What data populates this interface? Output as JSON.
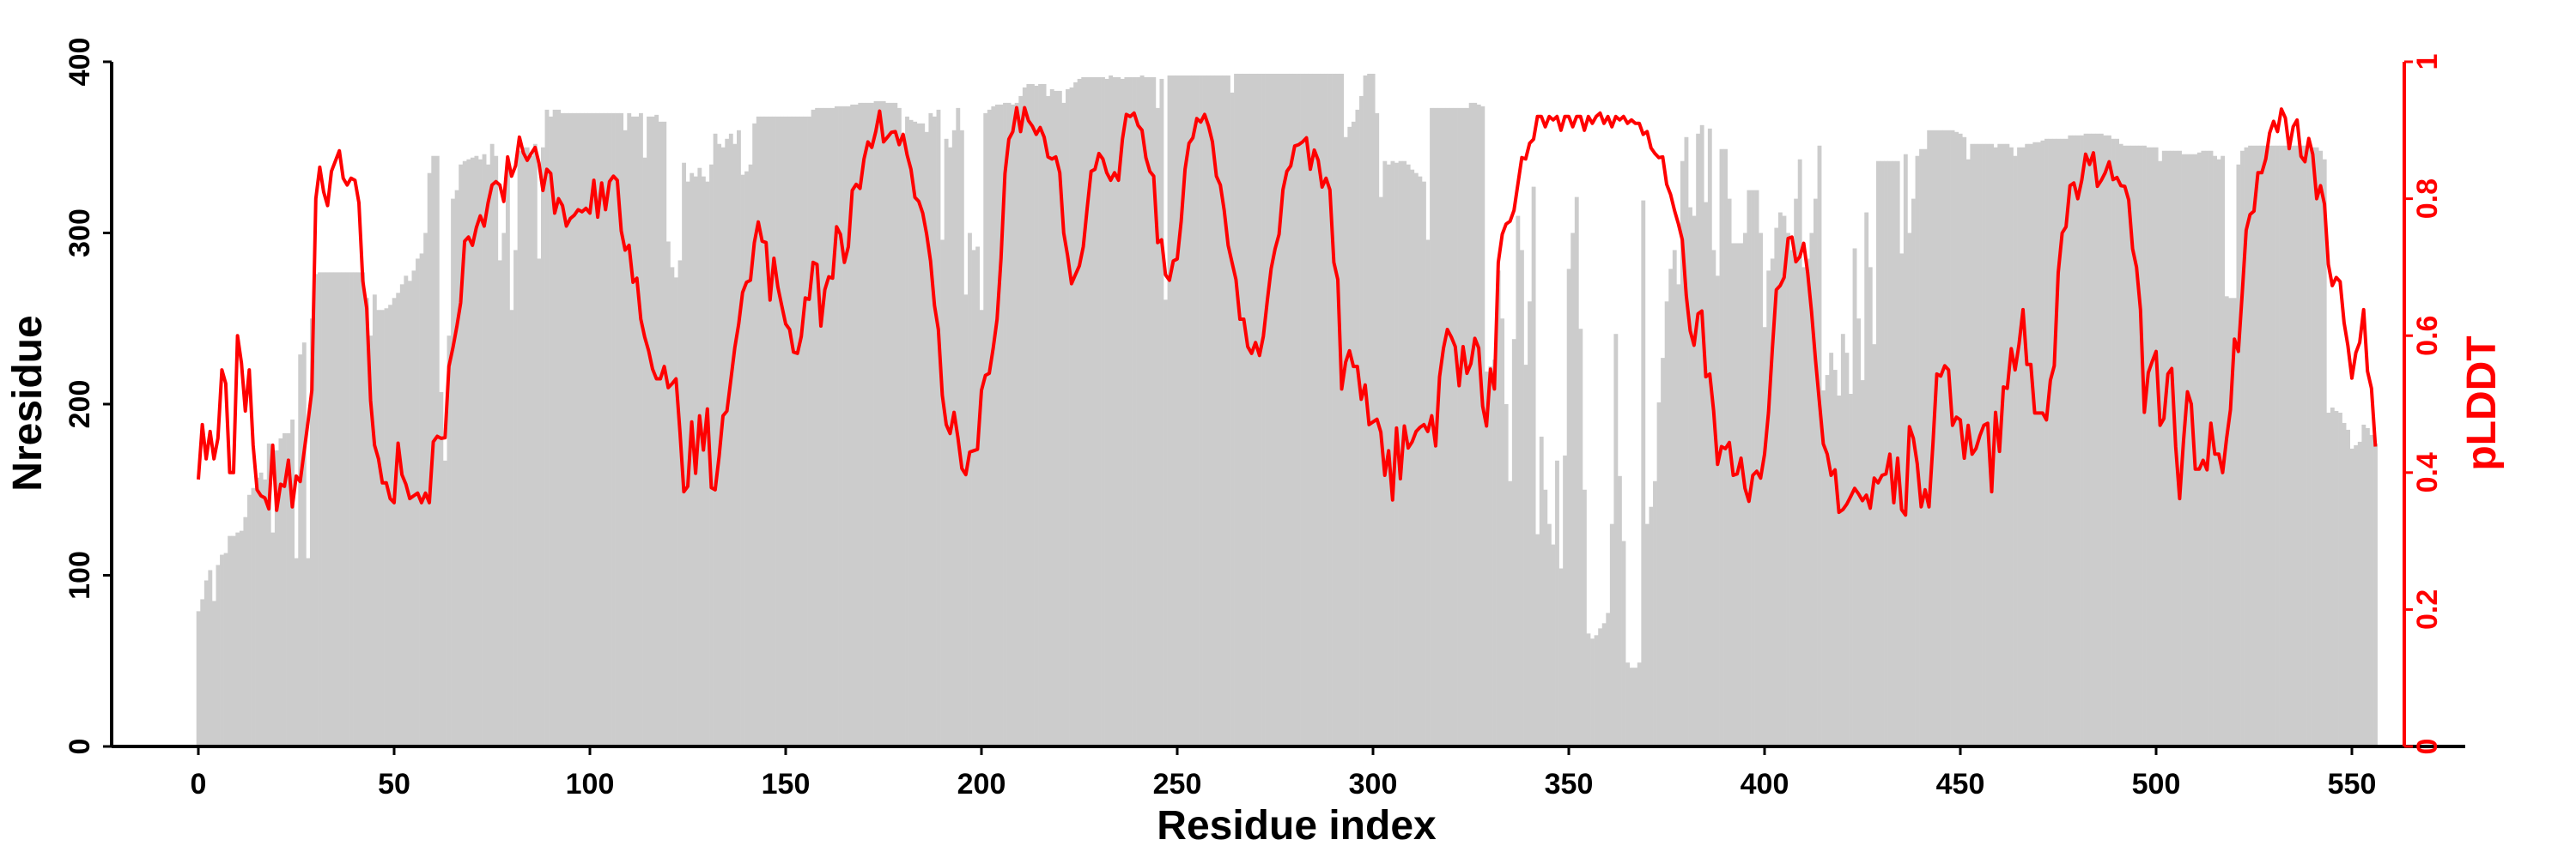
{
  "chart_data": {
    "type": "bar+line",
    "xlabel": "Residue index",
    "ylabel_left": "Nresidue",
    "ylabel_right": "pLDDT",
    "xlim": [
      0,
      556
    ],
    "ylim_left": [
      0,
      400
    ],
    "ylim_right": [
      0,
      1
    ],
    "x_ticks": [
      "0",
      "50",
      "100",
      "150",
      "200",
      "250",
      "300",
      "350",
      "400",
      "450",
      "500",
      "550"
    ],
    "y_ticks_left": [
      "0",
      "100",
      "200",
      "300",
      "400"
    ],
    "y_ticks_right": [
      "0",
      "0.2",
      "0.4",
      "0.6",
      "0.8",
      "1"
    ],
    "grid": false,
    "colors": {
      "bars": "#cccccc",
      "line": "#ff0000",
      "axis": "#000000",
      "right_axis": "#ff0000"
    },
    "series": [
      {
        "name": "Nresidue",
        "type": "bar",
        "axis": "left",
        "x_start": 0,
        "values": [
          79,
          86,
          97,
          103,
          85,
          106,
          112,
          113,
          123,
          123,
          125,
          126,
          134,
          147,
          151,
          157,
          160,
          156,
          177,
          125,
          173,
          180,
          183,
          183,
          191,
          110,
          229,
          236,
          110,
          250,
          276,
          277,
          277,
          277,
          277,
          277,
          277,
          277,
          277,
          277,
          277,
          277,
          277,
          262,
          240,
          264,
          255,
          255,
          256,
          258,
          262,
          265,
          270,
          275,
          272,
          278,
          285,
          288,
          300,
          335,
          345,
          345,
          207,
          167,
          240,
          320,
          325,
          340,
          342,
          343,
          344,
          345,
          343,
          346,
          340,
          352,
          345,
          284,
          300,
          340,
          255,
          290,
          348,
          350,
          350,
          345,
          352,
          285,
          350,
          372,
          368,
          372,
          372,
          370,
          370,
          370,
          370,
          370,
          370,
          370,
          370,
          370,
          370,
          370,
          370,
          370,
          370,
          370,
          370,
          360,
          370,
          368,
          368,
          370,
          344,
          368,
          368,
          369,
          365,
          365,
          295,
          280,
          274,
          284,
          341,
          330,
          335,
          333,
          338,
          333,
          330,
          340,
          358,
          352,
          350,
          355,
          358,
          352,
          360,
          334,
          336,
          340,
          364,
          368,
          368,
          368,
          368,
          368,
          368,
          368,
          368,
          368,
          368,
          368,
          368,
          368,
          368,
          372,
          373,
          373,
          373,
          373,
          373,
          374,
          374,
          374,
          374,
          375,
          375,
          376,
          376,
          376,
          376,
          377,
          377,
          377,
          376,
          376,
          376,
          373,
          355,
          368,
          366,
          365,
          364,
          364,
          359,
          370,
          368,
          372,
          296,
          355,
          350,
          360,
          373,
          360,
          264,
          300,
          290,
          292,
          255,
          370,
          372,
          374,
          375,
          375,
          376,
          376,
          375,
          376,
          380,
          385,
          387,
          387,
          386,
          387,
          387,
          380,
          384,
          383,
          383,
          376,
          384,
          385,
          388,
          390,
          391,
          391,
          391,
          391,
          391,
          391,
          390,
          392,
          391,
          391,
          390,
          391,
          391,
          391,
          391,
          392,
          391,
          391,
          391,
          373,
          390,
          261,
          392,
          392,
          392,
          392,
          392,
          392,
          392,
          392,
          392,
          392,
          392,
          392,
          392,
          392,
          392,
          392,
          382,
          393,
          393,
          393,
          393,
          393,
          393,
          393,
          393,
          393,
          393,
          393,
          393,
          393,
          393,
          393,
          393,
          393,
          393,
          393,
          393,
          393,
          393,
          393,
          393,
          393,
          393,
          393,
          393,
          356,
          362,
          365,
          372,
          380,
          392,
          393,
          393,
          370,
          321,
          342,
          340,
          342,
          341,
          342,
          342,
          340,
          337,
          335,
          333,
          330,
          296,
          373,
          373,
          373,
          373,
          373,
          373,
          373,
          373,
          373,
          373,
          376,
          376,
          375,
          374,
          219,
          222,
          226,
          278,
          250,
          200,
          155,
          238,
          310,
          290,
          223,
          260,
          327,
          124,
          181,
          150,
          130,
          118,
          167,
          104,
          170,
          279,
          300,
          321,
          244,
          150,
          66,
          63,
          65,
          69,
          72,
          78,
          130,
          241,
          158,
          120,
          49,
          46,
          46,
          49,
          319,
          130,
          140,
          155,
          201,
          227,
          260,
          279,
          290,
          270,
          342,
          356,
          315,
          310,
          358,
          363,
          318,
          361,
          290,
          275,
          349,
          349,
          320,
          294,
          294,
          294,
          300,
          325,
          325,
          325,
          300,
          245,
          278,
          285,
          303,
          312,
          310,
          300,
          290,
          320,
          343,
          280,
          285,
          300,
          320,
          351,
          208,
          217,
          230,
          220,
          205,
          241,
          230,
          206,
          291,
          250,
          214,
          312,
          280,
          235,
          342,
          342,
          342,
          342,
          342,
          342,
          288,
          346,
          300,
          320,
          345,
          349,
          349,
          360,
          360,
          360,
          360,
          360,
          360,
          360,
          359,
          358,
          356,
          343,
          352,
          352,
          352,
          352,
          352,
          352,
          350,
          352,
          352,
          352,
          350,
          345,
          350,
          350,
          352,
          352,
          353,
          353,
          354,
          355,
          355,
          355,
          355,
          355,
          355,
          357,
          357,
          357,
          357,
          358,
          358,
          358,
          358,
          358,
          357,
          357,
          355,
          355,
          352,
          351,
          351,
          351,
          351,
          351,
          351,
          350,
          350,
          350,
          342,
          348,
          348,
          348,
          348,
          348,
          346,
          346,
          346,
          346,
          347,
          348,
          348,
          348,
          345,
          343,
          345,
          263,
          262,
          262,
          340,
          348,
          350,
          351,
          351,
          351,
          351,
          351,
          351,
          351,
          351,
          351,
          351,
          351,
          351,
          351,
          351,
          351,
          351,
          350,
          350,
          348,
          343,
          195,
          198,
          196,
          195,
          189,
          185,
          174,
          176,
          178,
          188,
          186,
          182,
          177
        ]
      },
      {
        "name": "pLDDT",
        "type": "line",
        "axis": "right",
        "x_start": 0,
        "values": [
          0.39,
          0.47,
          0.42,
          0.46,
          0.42,
          0.45,
          0.55,
          0.53,
          0.4,
          0.4,
          0.6,
          0.56,
          0.49,
          0.55,
          0.44,
          0.375,
          0.366,
          0.363,
          0.347,
          0.44,
          0.345,
          0.383,
          0.38,
          0.418,
          0.35,
          0.395,
          0.387,
          0.43,
          0.474,
          0.52,
          0.8,
          0.846,
          0.81,
          0.79,
          0.84,
          0.855,
          0.87,
          0.83,
          0.82,
          0.83,
          0.827,
          0.794,
          0.68,
          0.64,
          0.505,
          0.44,
          0.42,
          0.385,
          0.385,
          0.362,
          0.356,
          0.443,
          0.397,
          0.383,
          0.362,
          0.366,
          0.37,
          0.356,
          0.37,
          0.356,
          0.445,
          0.453,
          0.45,
          0.451,
          0.555,
          0.582,
          0.613,
          0.648,
          0.738,
          0.744,
          0.732,
          0.758,
          0.775,
          0.76,
          0.794,
          0.82,
          0.825,
          0.82,
          0.796,
          0.861,
          0.833,
          0.848,
          0.89,
          0.867,
          0.856,
          0.866,
          0.875,
          0.852,
          0.812,
          0.843,
          0.837,
          0.779,
          0.8,
          0.79,
          0.76,
          0.771,
          0.776,
          0.784,
          0.781,
          0.786,
          0.779,
          0.827,
          0.773,
          0.823,
          0.784,
          0.825,
          0.833,
          0.827,
          0.753,
          0.725,
          0.732,
          0.678,
          0.684,
          0.624,
          0.598,
          0.578,
          0.551,
          0.537,
          0.537,
          0.555,
          0.524,
          0.53,
          0.537,
          0.459,
          0.372,
          0.38,
          0.474,
          0.399,
          0.483,
          0.433,
          0.493,
          0.378,
          0.375,
          0.424,
          0.483,
          0.49,
          0.536,
          0.582,
          0.617,
          0.663,
          0.678,
          0.681,
          0.736,
          0.766,
          0.738,
          0.736,
          0.652,
          0.713,
          0.671,
          0.644,
          0.617,
          0.609,
          0.576,
          0.574,
          0.599,
          0.655,
          0.653,
          0.707,
          0.704,
          0.614,
          0.667,
          0.686,
          0.684,
          0.759,
          0.748,
          0.707,
          0.73,
          0.812,
          0.821,
          0.815,
          0.858,
          0.883,
          0.875,
          0.898,
          0.928,
          0.883,
          0.89,
          0.897,
          0.898,
          0.879,
          0.894,
          0.864,
          0.843,
          0.802,
          0.796,
          0.779,
          0.748,
          0.709,
          0.644,
          0.609,
          0.513,
          0.47,
          0.457,
          0.488,
          0.451,
          0.406,
          0.397,
          0.43,
          0.432,
          0.434,
          0.52,
          0.542,
          0.545,
          0.582,
          0.624,
          0.713,
          0.837,
          0.887,
          0.898,
          0.933,
          0.898,
          0.933,
          0.914,
          0.906,
          0.894,
          0.904,
          0.89,
          0.861,
          0.858,
          0.861,
          0.838,
          0.75,
          0.717,
          0.676,
          0.689,
          0.702,
          0.73,
          0.786,
          0.84,
          0.843,
          0.866,
          0.858,
          0.838,
          0.827,
          0.838,
          0.827,
          0.887,
          0.923,
          0.92,
          0.925,
          0.907,
          0.9,
          0.86,
          0.84,
          0.833,
          0.736,
          0.74,
          0.689,
          0.681,
          0.709,
          0.712,
          0.767,
          0.843,
          0.881,
          0.889,
          0.917,
          0.912,
          0.923,
          0.906,
          0.883,
          0.833,
          0.82,
          0.783,
          0.732,
          0.707,
          0.682,
          0.624,
          0.624,
          0.584,
          0.574,
          0.59,
          0.571,
          0.599,
          0.651,
          0.698,
          0.727,
          0.748,
          0.813,
          0.84,
          0.848,
          0.877,
          0.879,
          0.883,
          0.889,
          0.843,
          0.871,
          0.856,
          0.817,
          0.83,
          0.813,
          0.707,
          0.682,
          0.522,
          0.561,
          0.578,
          0.555,
          0.555,
          0.507,
          0.528,
          0.47,
          0.474,
          0.478,
          0.459,
          0.396,
          0.432,
          0.36,
          0.465,
          0.391,
          0.468,
          0.436,
          0.445,
          0.46,
          0.466,
          0.47,
          0.46,
          0.483,
          0.439,
          0.54,
          0.582,
          0.609,
          0.598,
          0.584,
          0.527,
          0.584,
          0.545,
          0.559,
          0.596,
          0.582,
          0.497,
          0.468,
          0.551,
          0.522,
          0.707,
          0.748,
          0.763,
          0.767,
          0.783,
          0.821,
          0.86,
          0.858,
          0.881,
          0.887,
          0.92,
          0.92,
          0.905,
          0.92,
          0.915,
          0.92,
          0.9,
          0.92,
          0.92,
          0.905,
          0.92,
          0.92,
          0.9,
          0.92,
          0.91,
          0.92,
          0.925,
          0.91,
          0.92,
          0.905,
          0.92,
          0.915,
          0.92,
          0.91,
          0.915,
          0.91,
          0.91,
          0.894,
          0.898,
          0.874,
          0.866,
          0.86,
          0.861,
          0.821,
          0.806,
          0.783,
          0.763,
          0.74,
          0.659,
          0.607,
          0.586,
          0.632,
          0.636,
          0.54,
          0.544,
          0.49,
          0.412,
          0.438,
          0.435,
          0.444,
          0.396,
          0.398,
          0.421,
          0.377,
          0.358,
          0.396,
          0.402,
          0.392,
          0.427,
          0.488,
          0.581,
          0.667,
          0.673,
          0.685,
          0.742,
          0.744,
          0.708,
          0.715,
          0.735,
          0.692,
          0.635,
          0.565,
          0.504,
          0.442,
          0.427,
          0.396,
          0.404,
          0.342,
          0.346,
          0.354,
          0.365,
          0.377,
          0.369,
          0.359,
          0.367,
          0.348,
          0.392,
          0.385,
          0.396,
          0.398,
          0.427,
          0.356,
          0.421,
          0.346,
          0.338,
          0.467,
          0.45,
          0.413,
          0.35,
          0.375,
          0.35,
          0.442,
          0.544,
          0.541,
          0.556,
          0.55,
          0.469,
          0.481,
          0.477,
          0.421,
          0.469,
          0.427,
          0.435,
          0.454,
          0.469,
          0.472,
          0.372,
          0.488,
          0.431,
          0.525,
          0.523,
          0.581,
          0.55,
          0.588,
          0.638,
          0.558,
          0.558,
          0.487,
          0.487,
          0.487,
          0.477,
          0.535,
          0.556,
          0.692,
          0.75,
          0.759,
          0.819,
          0.823,
          0.8,
          0.827,
          0.865,
          0.85,
          0.867,
          0.818,
          0.827,
          0.838,
          0.854,
          0.828,
          0.831,
          0.819,
          0.818,
          0.798,
          0.727,
          0.7,
          0.638,
          0.488,
          0.546,
          0.562,
          0.577,
          0.469,
          0.479,
          0.544,
          0.552,
          0.438,
          0.362,
          0.446,
          0.518,
          0.5,
          0.405,
          0.405,
          0.418,
          0.404,
          0.472,
          0.427,
          0.427,
          0.4,
          0.45,
          0.492,
          0.595,
          0.577,
          0.662,
          0.754,
          0.777,
          0.782,
          0.838,
          0.838,
          0.858,
          0.896,
          0.913,
          0.898,
          0.931,
          0.918,
          0.873,
          0.905,
          0.915,
          0.862,
          0.854,
          0.888,
          0.865,
          0.8,
          0.819,
          0.792,
          0.704,
          0.673,
          0.685,
          0.679,
          0.619,
          0.585,
          0.538,
          0.575,
          0.59,
          0.638,
          0.548,
          0.523,
          0.438
        ]
      }
    ]
  }
}
